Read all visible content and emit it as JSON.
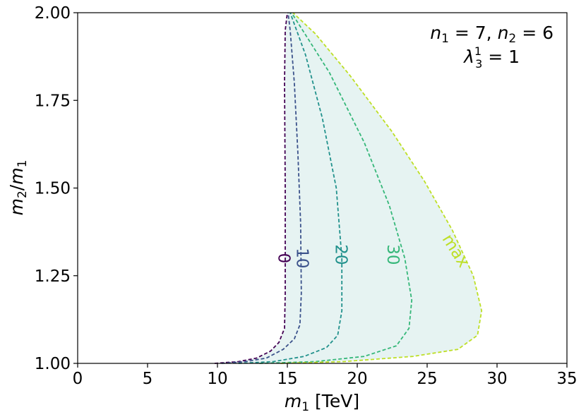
{
  "chart_data": {
    "type": "contour",
    "title": "",
    "xlabel": "m_1 [TeV]",
    "ylabel": "m_2/m_1",
    "xlim": [
      0,
      35
    ],
    "ylim": [
      1.0,
      2.0
    ],
    "x_ticks": [
      0,
      5,
      10,
      15,
      20,
      25,
      30,
      35
    ],
    "y_ticks": [
      1.0,
      1.25,
      1.5,
      1.75,
      2.0
    ],
    "x_tick_labels": [
      "0",
      "5",
      "10",
      "15",
      "20",
      "25",
      "30",
      "35"
    ],
    "y_tick_labels": [
      "1.00",
      "1.25",
      "1.50",
      "1.75",
      "2.00"
    ],
    "grid": false,
    "annotation": {
      "line1_n1": "n",
      "line1_n1_sub": "1",
      "line1_eq1": " = 7, ",
      "line1_n2": "n",
      "line1_n2_sub": "2",
      "line1_eq2": " = 6",
      "line2_lambda": "λ",
      "line2_sub": "3",
      "line2_sup": "1",
      "line2_eq": " = 1"
    },
    "shaded_region": {
      "color": "#e6f3f2",
      "between": [
        "0",
        "max"
      ]
    },
    "series": [
      {
        "name": "0",
        "color": "#440154",
        "label_at": [
          14.7,
          1.3
        ],
        "points": [
          [
            9.8,
            1.0
          ],
          [
            11.5,
            1.005
          ],
          [
            12.8,
            1.015
          ],
          [
            13.8,
            1.035
          ],
          [
            14.4,
            1.06
          ],
          [
            14.8,
            1.1
          ],
          [
            14.85,
            1.2
          ],
          [
            14.85,
            1.5
          ],
          [
            14.8,
            1.8
          ],
          [
            14.85,
            1.95
          ],
          [
            15.0,
            2.0
          ]
        ]
      },
      {
        "name": "10",
        "color": "#3b528b",
        "label_at": [
          16.0,
          1.3
        ],
        "points": [
          [
            10.3,
            1.0
          ],
          [
            12.0,
            1.005
          ],
          [
            13.5,
            1.015
          ],
          [
            14.7,
            1.04
          ],
          [
            15.5,
            1.07
          ],
          [
            15.9,
            1.11
          ],
          [
            16.0,
            1.2
          ],
          [
            15.95,
            1.4
          ],
          [
            15.75,
            1.6
          ],
          [
            15.5,
            1.8
          ],
          [
            15.2,
            1.95
          ],
          [
            15.05,
            2.0
          ]
        ]
      },
      {
        "name": "20",
        "color": "#21918c",
        "label_at": [
          18.8,
          1.31
        ],
        "points": [
          [
            11.5,
            1.0
          ],
          [
            14.0,
            1.005
          ],
          [
            16.2,
            1.02
          ],
          [
            17.8,
            1.045
          ],
          [
            18.6,
            1.08
          ],
          [
            18.9,
            1.15
          ],
          [
            18.9,
            1.3
          ],
          [
            18.5,
            1.5
          ],
          [
            17.5,
            1.7
          ],
          [
            16.3,
            1.88
          ],
          [
            15.2,
            2.0
          ]
        ]
      },
      {
        "name": "30",
        "color": "#35b779",
        "label_at": [
          22.5,
          1.31
        ],
        "points": [
          [
            13.0,
            1.0
          ],
          [
            17.0,
            1.005
          ],
          [
            20.5,
            1.02
          ],
          [
            22.8,
            1.05
          ],
          [
            23.7,
            1.1
          ],
          [
            23.9,
            1.18
          ],
          [
            23.4,
            1.3
          ],
          [
            22.3,
            1.45
          ],
          [
            20.5,
            1.63
          ],
          [
            18.0,
            1.83
          ],
          [
            15.3,
            2.0
          ]
        ]
      },
      {
        "name": "max",
        "color": "#bddf26",
        "label_at": [
          27.0,
          1.32
        ],
        "points": [
          [
            14.5,
            1.0
          ],
          [
            19.0,
            1.005
          ],
          [
            24.0,
            1.02
          ],
          [
            27.2,
            1.04
          ],
          [
            28.6,
            1.08
          ],
          [
            28.9,
            1.15
          ],
          [
            28.3,
            1.25
          ],
          [
            26.8,
            1.38
          ],
          [
            24.8,
            1.52
          ],
          [
            22.5,
            1.66
          ],
          [
            19.5,
            1.82
          ],
          [
            17.0,
            1.94
          ],
          [
            15.4,
            2.0
          ]
        ]
      }
    ]
  }
}
